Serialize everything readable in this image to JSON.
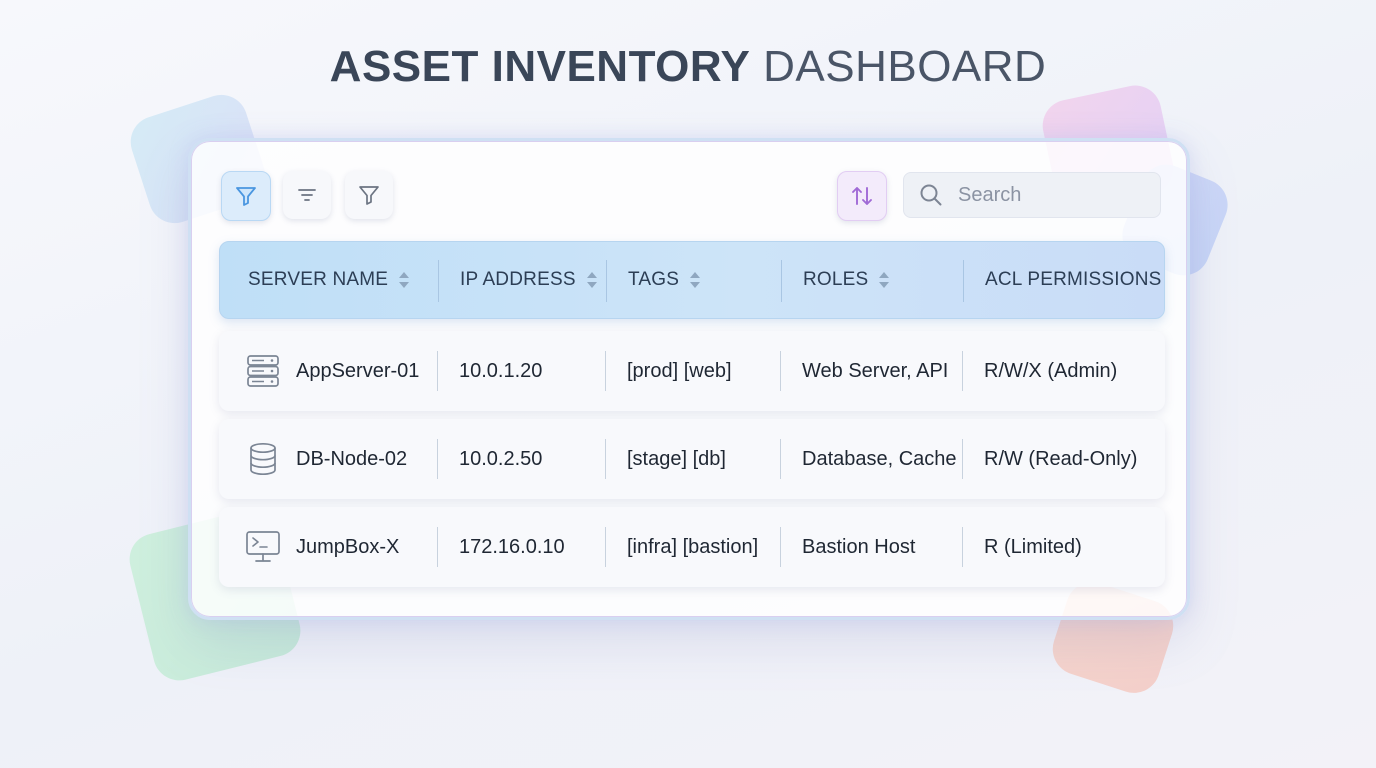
{
  "title": {
    "bold": "ASSET INVENTORY",
    "light": "DASHBOARD"
  },
  "toolbar": {
    "buttons": [
      {
        "name": "filter-active-button",
        "icon": "funnel-icon",
        "active": true
      },
      {
        "name": "filter-lines-button",
        "icon": "filter-lines-icon",
        "active": false
      },
      {
        "name": "filter-button",
        "icon": "funnel-icon",
        "active": false
      }
    ],
    "sort_button": {
      "icon": "sort-arrows-icon"
    },
    "search": {
      "placeholder": "Search",
      "value": ""
    }
  },
  "table": {
    "columns": [
      {
        "label": "SERVER NAME",
        "sortable": true
      },
      {
        "label": "IP ADDRESS",
        "sortable": true
      },
      {
        "label": "TAGS",
        "sortable": true
      },
      {
        "label": "ROLES",
        "sortable": true
      },
      {
        "label": "ACL PERMISSIONS",
        "sortable": false
      }
    ],
    "rows": [
      {
        "icon": "server-rack-icon",
        "name": "AppServer-01",
        "ip": "10.0.1.20",
        "tags": "[prod] [web]",
        "roles": "Web Server, API",
        "acl": "R/W/X (Admin)"
      },
      {
        "icon": "database-icon",
        "name": "DB-Node-02",
        "ip": "10.0.2.50",
        "tags": "[stage] [db]",
        "roles": "Database, Cache",
        "acl": "R/W (Read-Only)"
      },
      {
        "icon": "terminal-monitor-icon",
        "name": "JumpBox-X",
        "ip": "172.16.0.10",
        "tags": "[infra] [bastion]",
        "roles": "Bastion Host",
        "acl": "R (Limited)"
      }
    ]
  },
  "colors": {
    "accent": "#5aa3e6",
    "sort_accent": "#a06ad6",
    "title": "#3a4658",
    "header_bg": "#c9e2f8"
  }
}
